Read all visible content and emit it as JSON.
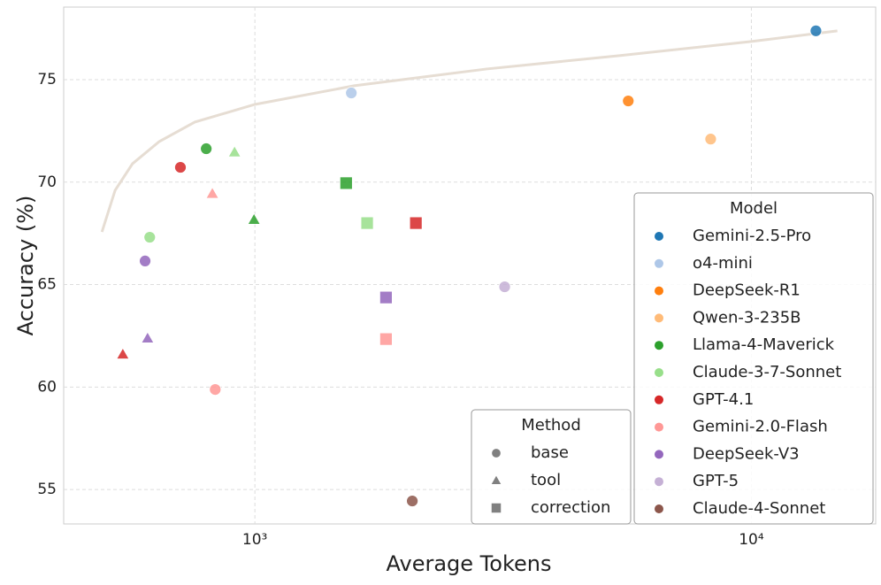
{
  "chart_data": {
    "type": "scatter",
    "x_label": "Average Tokens",
    "y_label": "Accuracy (%)",
    "log_x": true,
    "grid": true,
    "xlim": [
      412,
      17800
    ],
    "ylim": [
      53.32,
      78.54
    ],
    "xticks": [
      {
        "value": 1000,
        "label": "10³"
      },
      {
        "value": 10000,
        "label": "10⁴"
      }
    ],
    "yticks": [
      55,
      60,
      65,
      70,
      75
    ],
    "trend": {
      "color": "#e6ddd3",
      "x": [
        492,
        523,
        567,
        642,
        757,
        1000,
        1585,
        2930,
        5420,
        10000,
        14900
      ],
      "y": [
        67.57,
        69.6,
        70.9,
        71.98,
        72.93,
        73.79,
        74.7,
        75.52,
        76.17,
        76.86,
        77.38
      ]
    },
    "legend_title": "Model",
    "method_legend_title": "Method",
    "methods": [
      {
        "name": "base",
        "marker": "circle",
        "color": "#808080"
      },
      {
        "name": "tool",
        "marker": "triangle",
        "color": "#808080"
      },
      {
        "name": "correction",
        "marker": "square",
        "color": "#808080"
      }
    ],
    "series": [
      {
        "name": "Gemini-2.5-Pro",
        "color": "#1f77b4",
        "x": [
          13490
        ],
        "values": [
          77.38
        ],
        "markers": [
          "circle"
        ]
      },
      {
        "name": "o4-mini",
        "color": "#aec7e8",
        "x": [
          1564
        ],
        "values": [
          74.35
        ],
        "markers": [
          "circle"
        ]
      },
      {
        "name": "DeepSeek-R1",
        "color": "#ff7f0e",
        "x": [
          5650
        ],
        "values": [
          73.96
        ],
        "markers": [
          "circle"
        ]
      },
      {
        "name": "Qwen-3-235B",
        "color": "#ffbb78",
        "x": [
          8280
        ],
        "values": [
          72.1
        ],
        "markers": [
          "circle"
        ]
      },
      {
        "name": "Llama-4-Maverick",
        "color": "#2ca02c",
        "x": [
          798,
          996,
          1527
        ],
        "values": [
          71.63,
          68.17,
          69.95
        ],
        "markers": [
          "circle",
          "triangle",
          "square"
        ]
      },
      {
        "name": "Claude-3-7-Sonnet",
        "color": "#98df8a",
        "x": [
          614,
          910,
          1683
        ],
        "values": [
          67.31,
          71.46,
          68.0
        ],
        "markers": [
          "circle",
          "triangle",
          "square"
        ]
      },
      {
        "name": "GPT-4.1",
        "color": "#d62728",
        "x": [
          708,
          542,
          2110
        ],
        "values": [
          70.72,
          61.6,
          68.0
        ],
        "markers": [
          "circle",
          "triangle",
          "square"
        ]
      },
      {
        "name": "Gemini-2.0-Flash",
        "color": "#ff9896",
        "x": [
          832,
          821,
          1837
        ],
        "values": [
          59.88,
          69.44,
          62.34
        ],
        "markers": [
          "circle",
          "triangle",
          "square"
        ]
      },
      {
        "name": "DeepSeek-V3",
        "color": "#9467bd",
        "x": [
          601,
          608,
          1837
        ],
        "values": [
          66.15,
          62.38,
          64.37
        ],
        "markers": [
          "circle",
          "triangle",
          "square"
        ]
      },
      {
        "name": "GPT-5",
        "color": "#c5b0d5",
        "x": [
          3185
        ],
        "values": [
          64.89
        ],
        "markers": [
          "circle"
        ]
      },
      {
        "name": "Claude-4-Sonnet",
        "color": "#8c564b",
        "x": [
          2075
        ],
        "values": [
          54.44
        ],
        "markers": [
          "circle"
        ]
      }
    ]
  }
}
